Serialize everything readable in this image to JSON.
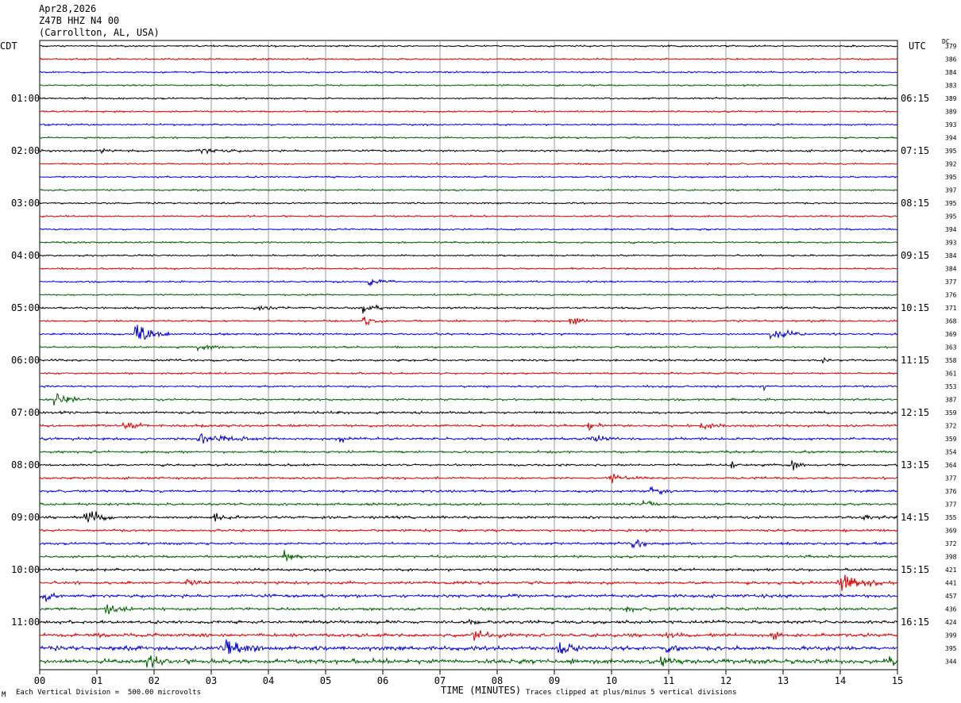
{
  "header": {
    "date": "Apr28,2026",
    "station": "Z47B HHZ N4 00",
    "location": "(Carrollton, AL, USA)"
  },
  "left_tz": "CDT",
  "right_tz": "UTC",
  "dc_label": "DC",
  "footer": {
    "scale_note": "Each Vertical Division =  500.00 microvolts",
    "clip_note": "Traces clipped at plus/minus 5 vertical divisions",
    "corner_mark": "M"
  },
  "colors": {
    "trace_cycle": [
      "#000000",
      "#e00000",
      "#0000e0",
      "#006000"
    ],
    "grid": "#9a9a9a",
    "frame": "#000000"
  },
  "chart_data": {
    "type": "line",
    "title": "",
    "xlabel": "TIME (MINUTES)",
    "xlim": [
      0,
      15
    ],
    "x_ticks": [
      "00",
      "01",
      "02",
      "03",
      "04",
      "05",
      "06",
      "07",
      "08",
      "09",
      "10",
      "11",
      "12",
      "13",
      "14",
      "15"
    ],
    "rows": 48,
    "left_hour_labels": [
      "01:00",
      "02:00",
      "03:00",
      "04:00",
      "05:00",
      "06:00",
      "07:00",
      "08:00",
      "09:00",
      "10:00",
      "11:00"
    ],
    "right_hour_labels": [
      "06:15",
      "07:15",
      "08:15",
      "09:15",
      "10:15",
      "11:15",
      "12:15",
      "13:15",
      "14:15",
      "15:15",
      "16:15"
    ],
    "hour_label_rows": [
      4,
      8,
      12,
      16,
      20,
      24,
      28,
      32,
      36,
      40,
      44
    ],
    "dc_values": [
      379,
      386,
      384,
      383,
      389,
      389,
      393,
      394,
      395,
      392,
      395,
      397,
      395,
      395,
      394,
      393,
      384,
      384,
      377,
      376,
      371,
      368,
      369,
      363,
      358,
      361,
      353,
      387,
      359,
      372,
      359,
      354,
      364,
      377,
      376,
      377,
      355,
      369,
      372,
      398,
      421,
      441,
      457,
      436,
      424,
      399,
      395,
      344
    ],
    "noise_levels": [
      1,
      1,
      1,
      1,
      1,
      1,
      1,
      1,
      1.2,
      1,
      1,
      1,
      1,
      1,
      1,
      1,
      1,
      1,
      1,
      1,
      1.2,
      1.1,
      1.2,
      1.1,
      1.2,
      1.1,
      1.1,
      1.2,
      1.4,
      1.4,
      1.5,
      1.3,
      1.3,
      1.3,
      1.4,
      1.4,
      1.5,
      1.4,
      1.4,
      1.4,
      1.5,
      1.6,
      1.8,
      1.7,
      1.8,
      2.0,
      2.4,
      2.6
    ],
    "events": [
      {
        "row": 8,
        "minute": 1.1,
        "amplitude": 5,
        "duration": 0.1
      },
      {
        "row": 8,
        "minute": 2.8,
        "amplitude": 3,
        "duration": 0.9
      },
      {
        "row": 18,
        "minute": 5.8,
        "amplitude": 4,
        "duration": 0.5
      },
      {
        "row": 20,
        "minute": 3.8,
        "amplitude": 3,
        "duration": 0.6
      },
      {
        "row": 20,
        "minute": 5.7,
        "amplitude": 6,
        "duration": 0.4
      },
      {
        "row": 21,
        "minute": 5.7,
        "amplitude": 5,
        "duration": 0.4
      },
      {
        "row": 21,
        "minute": 9.3,
        "amplitude": 9,
        "duration": 0.3
      },
      {
        "row": 22,
        "minute": 1.7,
        "amplitude": 12,
        "duration": 0.6
      },
      {
        "row": 22,
        "minute": 12.8,
        "amplitude": 9,
        "duration": 0.6
      },
      {
        "row": 23,
        "minute": 2.8,
        "amplitude": 3,
        "duration": 0.6
      },
      {
        "row": 24,
        "minute": 13.7,
        "amplitude": 6,
        "duration": 0.2
      },
      {
        "row": 26,
        "minute": 12.7,
        "amplitude": 5,
        "duration": 0.1
      },
      {
        "row": 27,
        "minute": 0.3,
        "amplitude": 11,
        "duration": 0.4
      },
      {
        "row": 29,
        "minute": 1.5,
        "amplitude": 7,
        "duration": 0.4
      },
      {
        "row": 29,
        "minute": 9.6,
        "amplitude": 7,
        "duration": 0.3
      },
      {
        "row": 29,
        "minute": 11.6,
        "amplitude": 4,
        "duration": 0.4
      },
      {
        "row": 30,
        "minute": 2.8,
        "amplitude": 6,
        "duration": 1.0
      },
      {
        "row": 30,
        "minute": 5.3,
        "amplitude": 5,
        "duration": 0.1
      },
      {
        "row": 30,
        "minute": 9.7,
        "amplitude": 5,
        "duration": 0.3
      },
      {
        "row": 32,
        "minute": 12.1,
        "amplitude": 5,
        "duration": 0.2
      },
      {
        "row": 32,
        "minute": 13.2,
        "amplitude": 6,
        "duration": 0.2
      },
      {
        "row": 33,
        "minute": 10.0,
        "amplitude": 5,
        "duration": 0.5
      },
      {
        "row": 34,
        "minute": 10.7,
        "amplitude": 5,
        "duration": 0.4
      },
      {
        "row": 35,
        "minute": 10.6,
        "amplitude": 7,
        "duration": 0.2
      },
      {
        "row": 36,
        "minute": 0.8,
        "amplitude": 12,
        "duration": 0.5
      },
      {
        "row": 36,
        "minute": 3.1,
        "amplitude": 6,
        "duration": 0.4
      },
      {
        "row": 36,
        "minute": 14.4,
        "amplitude": 4,
        "duration": 0.4
      },
      {
        "row": 38,
        "minute": 10.4,
        "amplitude": 6,
        "duration": 0.4
      },
      {
        "row": 39,
        "minute": 4.3,
        "amplitude": 8,
        "duration": 0.3
      },
      {
        "row": 41,
        "minute": 14.0,
        "amplitude": 13,
        "duration": 0.8
      },
      {
        "row": 41,
        "minute": 2.6,
        "amplitude": 4,
        "duration": 0.5
      },
      {
        "row": 42,
        "minute": 0.1,
        "amplitude": 7,
        "duration": 0.3
      },
      {
        "row": 43,
        "minute": 1.2,
        "amplitude": 6,
        "duration": 0.4
      },
      {
        "row": 43,
        "minute": 10.3,
        "amplitude": 7,
        "duration": 0.1
      },
      {
        "row": 44,
        "minute": 7.5,
        "amplitude": 6,
        "duration": 0.2
      },
      {
        "row": 45,
        "minute": 7.6,
        "amplitude": 8,
        "duration": 0.5
      },
      {
        "row": 45,
        "minute": 12.8,
        "amplitude": 9,
        "duration": 0.2
      },
      {
        "row": 45,
        "minute": 11.0,
        "amplitude": 6,
        "duration": 0.2
      },
      {
        "row": 46,
        "minute": 3.2,
        "amplitude": 16,
        "duration": 0.7
      },
      {
        "row": 46,
        "minute": 9.1,
        "amplitude": 10,
        "duration": 0.4
      },
      {
        "row": 46,
        "minute": 11.0,
        "amplitude": 6,
        "duration": 0.3
      },
      {
        "row": 47,
        "minute": 1.9,
        "amplitude": 6,
        "duration": 0.6
      },
      {
        "row": 47,
        "minute": 10.9,
        "amplitude": 7,
        "duration": 0.4
      },
      {
        "row": 47,
        "minute": 14.9,
        "amplitude": 8,
        "duration": 0.2
      }
    ]
  }
}
